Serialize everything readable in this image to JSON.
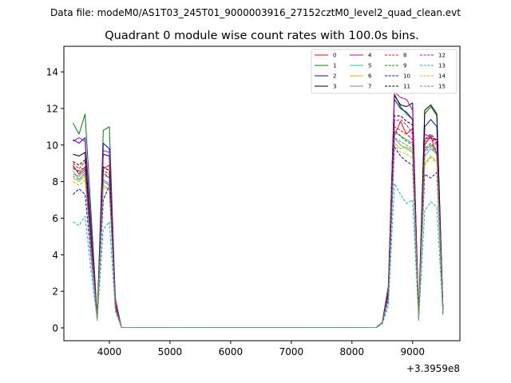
{
  "figure": {
    "suptitle": "Data file: modeM0/AS1T03_245T01_9000003916_27152cztM0_level2_quad_clean.evt"
  },
  "chart_data": {
    "type": "line",
    "title": "Quadrant 0 module wise count rates with 100.0s bins.",
    "xlabel": "",
    "ylabel": "",
    "x_offset_label": "+3.3959e8",
    "xlim": [
      3250,
      9780
    ],
    "ylim": [
      -0.7,
      15.4
    ],
    "xticks": [
      4000,
      5000,
      6000,
      7000,
      8000,
      9000
    ],
    "xtick_labels": [
      "4000",
      "5000",
      "6000",
      "7000",
      "8000",
      "9000"
    ],
    "yticks": [
      0,
      2,
      4,
      6,
      8,
      10,
      12,
      14
    ],
    "ytick_labels": [
      "0",
      "2",
      "4",
      "6",
      "8",
      "10",
      "12",
      "14"
    ],
    "grid": false,
    "legend_position": "top-right",
    "legend_columns": 4,
    "x": [
      3400,
      3500,
      3600,
      3700,
      3800,
      3900,
      4000,
      4100,
      4200,
      4300,
      4400,
      4500,
      4600,
      4700,
      4800,
      4900,
      5000,
      5100,
      5200,
      5300,
      5400,
      5500,
      5600,
      5700,
      5800,
      5900,
      6000,
      6100,
      6200,
      6300,
      6400,
      6500,
      6600,
      6700,
      6800,
      6900,
      7000,
      7100,
      7200,
      7300,
      7400,
      7500,
      7600,
      7700,
      7800,
      7900,
      8000,
      8100,
      8200,
      8300,
      8400,
      8500,
      8600,
      8700,
      8800,
      8900,
      9000,
      9100,
      9200,
      9300,
      9400,
      9500
    ],
    "series": [
      {
        "name": "0",
        "color": "#ff0000",
        "dash": "solid",
        "values": [
          8.9,
          8.4,
          8.7,
          4.0,
          0.6,
          8.7,
          8.9,
          1.6,
          0.02,
          0.02,
          0.02,
          0.02,
          0.02,
          0.02,
          0.02,
          0.02,
          0.02,
          0.02,
          0.02,
          0.02,
          0.02,
          0.02,
          0.02,
          0.02,
          0.02,
          0.02,
          0.02,
          0.02,
          0.02,
          0.02,
          0.02,
          0.02,
          0.02,
          0.02,
          0.02,
          0.02,
          0.02,
          0.02,
          0.02,
          0.02,
          0.02,
          0.02,
          0.02,
          0.02,
          0.02,
          0.02,
          0.02,
          0.02,
          0.02,
          0.02,
          0.02,
          0.3,
          1.8,
          10.5,
          11.3,
          10.6,
          10.9,
          0.6,
          10.0,
          10.5,
          9.4,
          1.0
        ]
      },
      {
        "name": "1",
        "color": "#008000",
        "dash": "solid",
        "values": [
          11.2,
          10.6,
          11.7,
          6.2,
          0.6,
          10.8,
          11.0,
          1.4,
          0.02,
          0.02,
          0.02,
          0.02,
          0.02,
          0.02,
          0.02,
          0.02,
          0.02,
          0.02,
          0.02,
          0.02,
          0.02,
          0.02,
          0.02,
          0.02,
          0.02,
          0.02,
          0.02,
          0.02,
          0.02,
          0.02,
          0.02,
          0.02,
          0.02,
          0.02,
          0.02,
          0.02,
          0.02,
          0.02,
          0.02,
          0.02,
          0.02,
          0.02,
          0.02,
          0.02,
          0.02,
          0.02,
          0.02,
          0.02,
          0.02,
          0.02,
          0.02,
          0.3,
          2.3,
          12.8,
          12.1,
          11.7,
          11.4,
          0.7,
          11.7,
          12.1,
          11.6,
          1.2
        ]
      },
      {
        "name": "2",
        "color": "#0000ff",
        "dash": "solid",
        "values": [
          10.3,
          10.1,
          10.4,
          5.5,
          0.5,
          10.1,
          9.8,
          1.3,
          0.02,
          0.02,
          0.02,
          0.02,
          0.02,
          0.02,
          0.02,
          0.02,
          0.02,
          0.02,
          0.02,
          0.02,
          0.02,
          0.02,
          0.02,
          0.02,
          0.02,
          0.02,
          0.02,
          0.02,
          0.02,
          0.02,
          0.02,
          0.02,
          0.02,
          0.02,
          0.02,
          0.02,
          0.02,
          0.02,
          0.02,
          0.02,
          0.02,
          0.02,
          0.02,
          0.02,
          0.02,
          0.02,
          0.02,
          0.02,
          0.02,
          0.02,
          0.02,
          0.3,
          2.1,
          12.5,
          12.0,
          11.8,
          11.4,
          0.6,
          11.0,
          11.4,
          11.0,
          1.1
        ]
      },
      {
        "name": "3",
        "color": "#000000",
        "dash": "solid",
        "values": [
          9.5,
          9.4,
          9.6,
          5.0,
          0.5,
          9.5,
          9.4,
          1.2,
          0.02,
          0.02,
          0.02,
          0.02,
          0.02,
          0.02,
          0.02,
          0.02,
          0.02,
          0.02,
          0.02,
          0.02,
          0.02,
          0.02,
          0.02,
          0.02,
          0.02,
          0.02,
          0.02,
          0.02,
          0.02,
          0.02,
          0.02,
          0.02,
          0.02,
          0.02,
          0.02,
          0.02,
          0.02,
          0.02,
          0.02,
          0.02,
          0.02,
          0.02,
          0.02,
          0.02,
          0.02,
          0.02,
          0.02,
          0.02,
          0.02,
          0.02,
          0.02,
          0.3,
          2.0,
          12.7,
          12.2,
          12.1,
          12.3,
          0.6,
          11.9,
          12.2,
          11.7,
          1.1
        ]
      },
      {
        "name": "4",
        "color": "#bf00bf",
        "dash": "solid",
        "values": [
          10.2,
          10.4,
          10.2,
          5.2,
          0.5,
          9.7,
          9.6,
          1.3,
          0.02,
          0.02,
          0.02,
          0.02,
          0.02,
          0.02,
          0.02,
          0.02,
          0.02,
          0.02,
          0.02,
          0.02,
          0.02,
          0.02,
          0.02,
          0.02,
          0.02,
          0.02,
          0.02,
          0.02,
          0.02,
          0.02,
          0.02,
          0.02,
          0.02,
          0.02,
          0.02,
          0.02,
          0.02,
          0.02,
          0.02,
          0.02,
          0.02,
          0.02,
          0.02,
          0.02,
          0.02,
          0.02,
          0.02,
          0.02,
          0.02,
          0.02,
          0.02,
          0.3,
          2.1,
          12.9,
          12.6,
          12.5,
          11.9,
          0.6,
          10.6,
          10.4,
          10.3,
          1.1
        ]
      },
      {
        "name": "5",
        "color": "#20c0a0",
        "dash": "solid",
        "values": [
          8.6,
          8.1,
          8.5,
          4.3,
          0.5,
          8.0,
          7.8,
          1.1,
          0.02,
          0.02,
          0.02,
          0.02,
          0.02,
          0.02,
          0.02,
          0.02,
          0.02,
          0.02,
          0.02,
          0.02,
          0.02,
          0.02,
          0.02,
          0.02,
          0.02,
          0.02,
          0.02,
          0.02,
          0.02,
          0.02,
          0.02,
          0.02,
          0.02,
          0.02,
          0.02,
          0.02,
          0.02,
          0.02,
          0.02,
          0.02,
          0.02,
          0.02,
          0.02,
          0.02,
          0.02,
          0.02,
          0.02,
          0.02,
          0.02,
          0.02,
          0.02,
          0.3,
          1.7,
          10.4,
          10.0,
          9.8,
          9.6,
          0.5,
          9.4,
          9.8,
          9.5,
          0.9
        ]
      },
      {
        "name": "6",
        "color": "#c0c000",
        "dash": "solid",
        "values": [
          8.2,
          8.0,
          8.3,
          4.1,
          0.5,
          7.8,
          7.6,
          1.1,
          0.02,
          0.02,
          0.02,
          0.02,
          0.02,
          0.02,
          0.02,
          0.02,
          0.02,
          0.02,
          0.02,
          0.02,
          0.02,
          0.02,
          0.02,
          0.02,
          0.02,
          0.02,
          0.02,
          0.02,
          0.02,
          0.02,
          0.02,
          0.02,
          0.02,
          0.02,
          0.02,
          0.02,
          0.02,
          0.02,
          0.02,
          0.02,
          0.02,
          0.02,
          0.02,
          0.02,
          0.02,
          0.02,
          0.02,
          0.02,
          0.02,
          0.02,
          0.02,
          0.3,
          1.6,
          10.1,
          9.8,
          9.9,
          9.7,
          0.5,
          9.0,
          9.4,
          9.1,
          0.9
        ]
      },
      {
        "name": "7",
        "color": "#808080",
        "dash": "solid",
        "values": [
          8.4,
          8.3,
          8.6,
          4.2,
          0.5,
          8.1,
          7.9,
          1.1,
          0.02,
          0.02,
          0.02,
          0.02,
          0.02,
          0.02,
          0.02,
          0.02,
          0.02,
          0.02,
          0.02,
          0.02,
          0.02,
          0.02,
          0.02,
          0.02,
          0.02,
          0.02,
          0.02,
          0.02,
          0.02,
          0.02,
          0.02,
          0.02,
          0.02,
          0.02,
          0.02,
          0.02,
          0.02,
          0.02,
          0.02,
          0.02,
          0.02,
          0.02,
          0.02,
          0.02,
          0.02,
          0.02,
          0.02,
          0.02,
          0.02,
          0.02,
          0.02,
          0.3,
          1.7,
          10.7,
          10.5,
          10.3,
          10.1,
          0.5,
          9.7,
          10.0,
          9.6,
          0.9
        ]
      },
      {
        "name": "8",
        "color": "#ff0000",
        "dash": "dashed",
        "values": [
          9.0,
          8.7,
          9.1,
          4.5,
          0.5,
          8.6,
          8.4,
          1.2,
          0.02,
          0.02,
          0.02,
          0.02,
          0.02,
          0.02,
          0.02,
          0.02,
          0.02,
          0.02,
          0.02,
          0.02,
          0.02,
          0.02,
          0.02,
          0.02,
          0.02,
          0.02,
          0.02,
          0.02,
          0.02,
          0.02,
          0.02,
          0.02,
          0.02,
          0.02,
          0.02,
          0.02,
          0.02,
          0.02,
          0.02,
          0.02,
          0.02,
          0.02,
          0.02,
          0.02,
          0.02,
          0.02,
          0.02,
          0.02,
          0.02,
          0.02,
          0.02,
          0.3,
          1.8,
          11.0,
          10.8,
          10.6,
          10.3,
          0.6,
          10.1,
          10.4,
          10.0,
          1.0
        ]
      },
      {
        "name": "9",
        "color": "#008000",
        "dash": "dashed",
        "values": [
          8.8,
          8.5,
          8.8,
          4.4,
          0.5,
          8.5,
          8.2,
          1.2,
          0.02,
          0.02,
          0.02,
          0.02,
          0.02,
          0.02,
          0.02,
          0.02,
          0.02,
          0.02,
          0.02,
          0.02,
          0.02,
          0.02,
          0.02,
          0.02,
          0.02,
          0.02,
          0.02,
          0.02,
          0.02,
          0.02,
          0.02,
          0.02,
          0.02,
          0.02,
          0.02,
          0.02,
          0.02,
          0.02,
          0.02,
          0.02,
          0.02,
          0.02,
          0.02,
          0.02,
          0.02,
          0.02,
          0.02,
          0.02,
          0.02,
          0.02,
          0.02,
          0.3,
          1.8,
          10.8,
          10.5,
          10.2,
          10.0,
          0.6,
          9.8,
          10.1,
          9.7,
          1.0
        ]
      },
      {
        "name": "10",
        "color": "#0000ff",
        "dash": "dashed",
        "values": [
          7.3,
          7.6,
          7.3,
          3.8,
          0.5,
          7.0,
          7.8,
          1.0,
          0.02,
          0.02,
          0.02,
          0.02,
          0.02,
          0.02,
          0.02,
          0.02,
          0.02,
          0.02,
          0.02,
          0.02,
          0.02,
          0.02,
          0.02,
          0.02,
          0.02,
          0.02,
          0.02,
          0.02,
          0.02,
          0.02,
          0.02,
          0.02,
          0.02,
          0.02,
          0.02,
          0.02,
          0.02,
          0.02,
          0.02,
          0.02,
          0.02,
          0.02,
          0.02,
          0.02,
          0.02,
          0.02,
          0.02,
          0.02,
          0.02,
          0.02,
          0.02,
          0.3,
          1.5,
          9.9,
          9.4,
          9.1,
          8.9,
          0.5,
          8.4,
          8.2,
          8.5,
          0.8
        ]
      },
      {
        "name": "11",
        "color": "#000000",
        "dash": "dashed",
        "values": [
          9.1,
          8.9,
          9.2,
          4.6,
          0.5,
          8.8,
          8.6,
          1.2,
          0.02,
          0.02,
          0.02,
          0.02,
          0.02,
          0.02,
          0.02,
          0.02,
          0.02,
          0.02,
          0.02,
          0.02,
          0.02,
          0.02,
          0.02,
          0.02,
          0.02,
          0.02,
          0.02,
          0.02,
          0.02,
          0.02,
          0.02,
          0.02,
          0.02,
          0.02,
          0.02,
          0.02,
          0.02,
          0.02,
          0.02,
          0.02,
          0.02,
          0.02,
          0.02,
          0.02,
          0.02,
          0.02,
          0.02,
          0.02,
          0.02,
          0.02,
          0.02,
          0.3,
          1.9,
          11.6,
          11.6,
          11.3,
          11.1,
          0.6,
          10.3,
          10.6,
          10.2,
          1.0
        ]
      },
      {
        "name": "12",
        "color": "#bf00bf",
        "dash": "dashed",
        "values": [
          8.7,
          8.6,
          8.8,
          4.4,
          0.5,
          8.4,
          8.2,
          1.2,
          0.02,
          0.02,
          0.02,
          0.02,
          0.02,
          0.02,
          0.02,
          0.02,
          0.02,
          0.02,
          0.02,
          0.02,
          0.02,
          0.02,
          0.02,
          0.02,
          0.02,
          0.02,
          0.02,
          0.02,
          0.02,
          0.02,
          0.02,
          0.02,
          0.02,
          0.02,
          0.02,
          0.02,
          0.02,
          0.02,
          0.02,
          0.02,
          0.02,
          0.02,
          0.02,
          0.02,
          0.02,
          0.02,
          0.02,
          0.02,
          0.02,
          0.02,
          0.02,
          0.3,
          1.8,
          11.3,
          11.4,
          11.1,
          10.6,
          0.6,
          10.2,
          10.5,
          10.1,
          1.0
        ]
      },
      {
        "name": "13",
        "color": "#00bfbf",
        "dash": "dashed",
        "values": [
          5.8,
          5.6,
          6.1,
          3.1,
          0.4,
          5.4,
          5.8,
          0.9,
          0.02,
          0.02,
          0.02,
          0.02,
          0.02,
          0.02,
          0.02,
          0.02,
          0.02,
          0.02,
          0.02,
          0.02,
          0.02,
          0.02,
          0.02,
          0.02,
          0.02,
          0.02,
          0.02,
          0.02,
          0.02,
          0.02,
          0.02,
          0.02,
          0.02,
          0.02,
          0.02,
          0.02,
          0.02,
          0.02,
          0.02,
          0.02,
          0.02,
          0.02,
          0.02,
          0.02,
          0.02,
          0.02,
          0.02,
          0.02,
          0.02,
          0.02,
          0.02,
          0.2,
          1.2,
          7.9,
          7.3,
          6.8,
          7.0,
          0.4,
          6.4,
          6.9,
          6.6,
          0.7
        ]
      },
      {
        "name": "14",
        "color": "#c0c000",
        "dash": "dashed",
        "values": [
          8.0,
          7.8,
          8.1,
          4.0,
          0.5,
          7.7,
          7.5,
          1.1,
          0.02,
          0.02,
          0.02,
          0.02,
          0.02,
          0.02,
          0.02,
          0.02,
          0.02,
          0.02,
          0.02,
          0.02,
          0.02,
          0.02,
          0.02,
          0.02,
          0.02,
          0.02,
          0.02,
          0.02,
          0.02,
          0.02,
          0.02,
          0.02,
          0.02,
          0.02,
          0.02,
          0.02,
          0.02,
          0.02,
          0.02,
          0.02,
          0.02,
          0.02,
          0.02,
          0.02,
          0.02,
          0.02,
          0.02,
          0.02,
          0.02,
          0.02,
          0.02,
          0.3,
          1.6,
          10.0,
          9.6,
          9.5,
          9.3,
          0.5,
          8.9,
          9.3,
          9.0,
          0.9
        ]
      },
      {
        "name": "15",
        "color": "#808080",
        "dash": "dashed",
        "values": [
          8.3,
          8.1,
          8.4,
          4.2,
          0.5,
          8.0,
          7.8,
          1.1,
          0.02,
          0.02,
          0.02,
          0.02,
          0.02,
          0.02,
          0.02,
          0.02,
          0.02,
          0.02,
          0.02,
          0.02,
          0.02,
          0.02,
          0.02,
          0.02,
          0.02,
          0.02,
          0.02,
          0.02,
          0.02,
          0.02,
          0.02,
          0.02,
          0.02,
          0.02,
          0.02,
          0.02,
          0.02,
          0.02,
          0.02,
          0.02,
          0.02,
          0.02,
          0.02,
          0.02,
          0.02,
          0.02,
          0.02,
          0.02,
          0.02,
          0.02,
          0.02,
          0.3,
          1.7,
          10.4,
          10.2,
          10.0,
          9.8,
          0.5,
          9.6,
          9.9,
          9.5,
          0.9
        ]
      }
    ]
  }
}
